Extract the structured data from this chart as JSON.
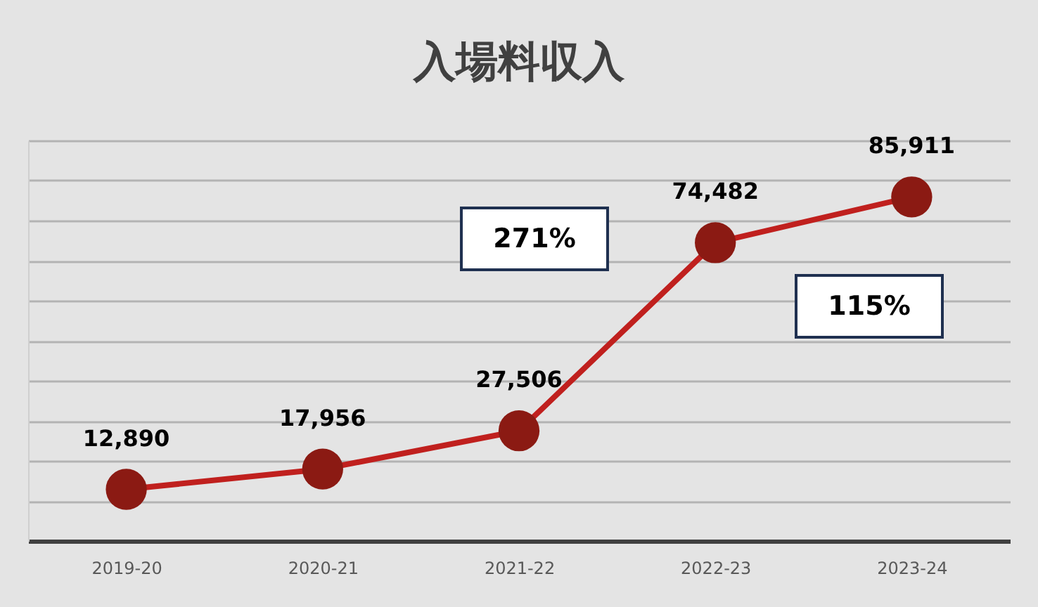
{
  "chart_data": {
    "type": "line",
    "title": "入場料収入",
    "categories": [
      "2019-20",
      "2020-21",
      "2021-22",
      "2022-23",
      "2023-24"
    ],
    "series": [
      {
        "color": "#c0201e",
        "values": [
          12890,
          17956,
          27506,
          74482,
          85911
        ],
        "value_labels": [
          "12,890",
          "17,956",
          "27,506",
          "74,482",
          "85,911"
        ]
      }
    ],
    "marker": "circle",
    "line_style": "solid",
    "ylim": [
      0,
      100000
    ],
    "grid": "y",
    "tick_labels": "x",
    "annotations": [
      "271%",
      "115%"
    ]
  }
}
